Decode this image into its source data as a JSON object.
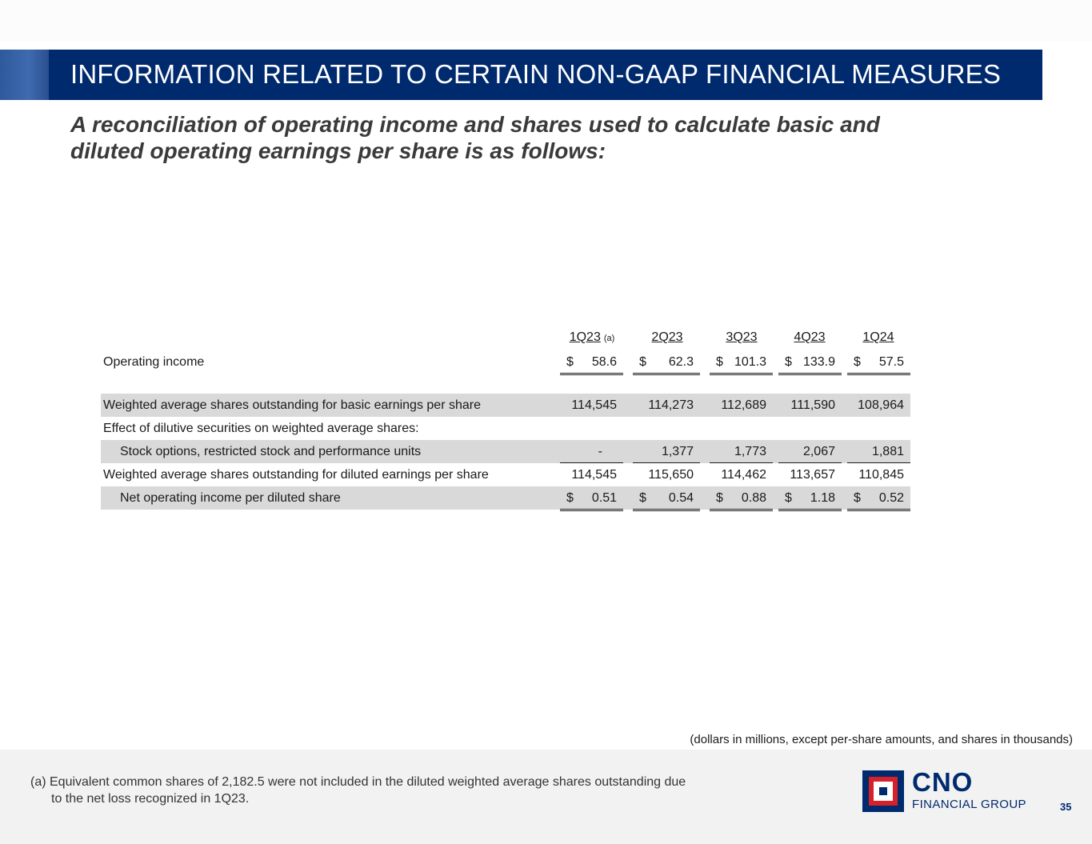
{
  "header": {
    "title": "INFORMATION RELATED TO CERTAIN NON-GAAP FINANCIAL MEASURES",
    "subtitle_line1": "A reconciliation of operating income and shares used to calculate basic and",
    "subtitle_line2": "diluted operating earnings per share is as follows:"
  },
  "table": {
    "columns": [
      {
        "label": "1Q23",
        "note": "(a)"
      },
      {
        "label": "2Q23"
      },
      {
        "label": "3Q23"
      },
      {
        "label": "4Q23"
      },
      {
        "label": "1Q24"
      }
    ],
    "currency_symbol": "$",
    "rows": {
      "operating_income": {
        "label": "Operating income",
        "values": [
          "58.6",
          "62.3",
          "101.3",
          "133.9",
          "57.5"
        ]
      },
      "basic_shares": {
        "label": "Weighted average shares outstanding for basic earnings per share",
        "values": [
          "114,545",
          "114,273",
          "112,689",
          "111,590",
          "108,964"
        ]
      },
      "dilutive_effect": {
        "label": "Effect of dilutive securities on weighted average shares:"
      },
      "stock_options": {
        "label": "Stock options, restricted stock and performance units",
        "values": [
          "-",
          "1,377",
          "1,773",
          "2,067",
          "1,881"
        ]
      },
      "diluted_shares": {
        "label": "Weighted average shares outstanding for diluted earnings per share",
        "values": [
          "114,545",
          "115,650",
          "114,462",
          "113,657",
          "110,845"
        ]
      },
      "net_per_share": {
        "label": "Net operating income per diluted share",
        "values": [
          "0.51",
          "0.54",
          "0.88",
          "1.18",
          "0.52"
        ]
      }
    }
  },
  "units_note": "(dollars in millions, except per-share amounts, and shares in thousands)",
  "footnote": {
    "line1": "(a) Equivalent common shares of 2,182.5 were not included in the diluted weighted average shares outstanding due",
    "line2": "to the net loss recognized in 1Q23."
  },
  "logo": {
    "name": "CNO",
    "tagline": "FINANCIAL GROUP"
  },
  "page_number": "35"
}
